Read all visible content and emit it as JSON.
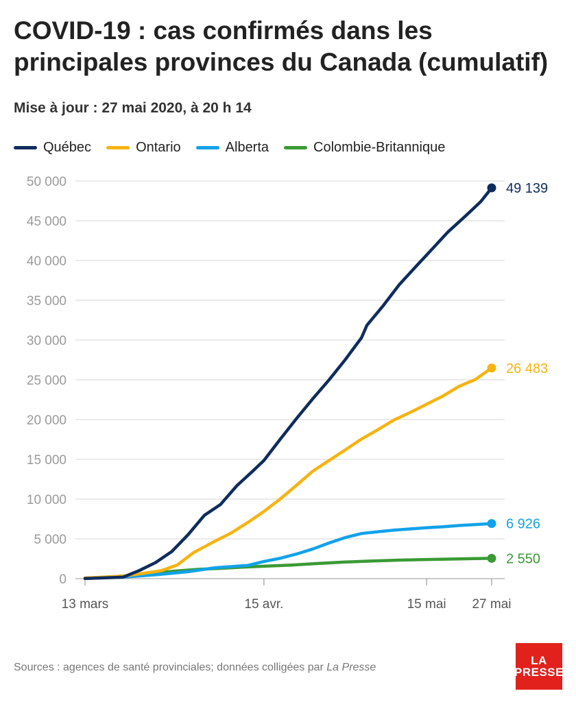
{
  "title": "COVID-19 : cas confirmés dans les principales provinces du Canada (cumulatif)",
  "subtitle": "Mise à jour : 27 mai 2020, à 20 h 14",
  "source": {
    "text": "Sources : agences de santé provinciales; données colligées par ",
    "italic": "La Presse"
  },
  "logo": {
    "line1": "LA",
    "line2": "PRESSE"
  },
  "colors": {
    "quebec": "#0f2c5c",
    "ontario": "#f6b312",
    "alberta": "#12a2ea",
    "cb": "#3a9a35",
    "grid": "#d6d6d6",
    "tick": "#9a9a9a"
  },
  "chart_data": {
    "type": "line",
    "x_unit": "date",
    "xlim": [
      "2020-03-13",
      "2020-05-27"
    ],
    "ylim": [
      0,
      50000
    ],
    "yticks": [
      0,
      5000,
      10000,
      15000,
      20000,
      25000,
      30000,
      35000,
      40000,
      45000,
      50000
    ],
    "ytick_labels": [
      "0",
      "5 000",
      "10 000",
      "15 000",
      "20 000",
      "25 000",
      "30 000",
      "35 000",
      "40 000",
      "45 000",
      "50 000"
    ],
    "xticks": [
      {
        "date": "2020-03-13",
        "label": "13 mars"
      },
      {
        "date": "2020-04-15",
        "label": "15 avr."
      },
      {
        "date": "2020-05-15",
        "label": "15 mai"
      },
      {
        "date": "2020-05-27",
        "label": "27 mai"
      }
    ],
    "grid": true,
    "legend_position": "top",
    "series": [
      {
        "name": "Québec",
        "key": "quebec",
        "end_label": "49 139",
        "points": [
          [
            "2020-03-13",
            17
          ],
          [
            "2020-03-20",
            181
          ],
          [
            "2020-03-23",
            1013
          ],
          [
            "2020-03-26",
            2021
          ],
          [
            "2020-03-29",
            3406
          ],
          [
            "2020-04-01",
            5518
          ],
          [
            "2020-04-04",
            7944
          ],
          [
            "2020-04-07",
            9340
          ],
          [
            "2020-04-10",
            11677
          ],
          [
            "2020-04-13",
            13557
          ],
          [
            "2020-04-15",
            14860
          ],
          [
            "2020-04-18",
            17521
          ],
          [
            "2020-04-21",
            20126
          ],
          [
            "2020-04-24",
            22616
          ],
          [
            "2020-04-27",
            24982
          ],
          [
            "2020-04-30",
            27538
          ],
          [
            "2020-05-03",
            30289
          ],
          [
            "2020-05-04",
            31865
          ],
          [
            "2020-05-07",
            34327
          ],
          [
            "2020-05-10",
            37000
          ],
          [
            "2020-05-13",
            39225
          ],
          [
            "2020-05-16",
            41420
          ],
          [
            "2020-05-19",
            43627
          ],
          [
            "2020-05-22",
            45495
          ],
          [
            "2020-05-25",
            47411
          ],
          [
            "2020-05-27",
            49139
          ]
        ]
      },
      {
        "name": "Ontario",
        "key": "ontario",
        "end_label": "26 483",
        "points": [
          [
            "2020-03-13",
            79
          ],
          [
            "2020-03-20",
            308
          ],
          [
            "2020-03-24",
            688
          ],
          [
            "2020-03-27",
            993
          ],
          [
            "2020-03-30",
            1706
          ],
          [
            "2020-04-02",
            3255
          ],
          [
            "2020-04-06",
            4726
          ],
          [
            "2020-04-09",
            5759
          ],
          [
            "2020-04-12",
            7049
          ],
          [
            "2020-04-15",
            8447
          ],
          [
            "2020-04-18",
            10010
          ],
          [
            "2020-04-21",
            11735
          ],
          [
            "2020-04-24",
            13519
          ],
          [
            "2020-04-27",
            14856
          ],
          [
            "2020-04-30",
            16187
          ],
          [
            "2020-05-03",
            17553
          ],
          [
            "2020-05-06",
            18722
          ],
          [
            "2020-05-09",
            19944
          ],
          [
            "2020-05-12",
            20907
          ],
          [
            "2020-05-15",
            21922
          ],
          [
            "2020-05-18",
            22957
          ],
          [
            "2020-05-21",
            24187
          ],
          [
            "2020-05-24",
            25040
          ],
          [
            "2020-05-27",
            26483
          ]
        ]
      },
      {
        "name": "Alberta",
        "key": "alberta",
        "end_label": "6 926",
        "points": [
          [
            "2020-03-13",
            23
          ],
          [
            "2020-03-20",
            195
          ],
          [
            "2020-03-26",
            486
          ],
          [
            "2020-04-01",
            871
          ],
          [
            "2020-04-06",
            1373
          ],
          [
            "2020-04-12",
            1651
          ],
          [
            "2020-04-15",
            2158
          ],
          [
            "2020-04-18",
            2562
          ],
          [
            "2020-04-21",
            3095
          ],
          [
            "2020-04-24",
            3720
          ],
          [
            "2020-04-27",
            4480
          ],
          [
            "2020-04-30",
            5165
          ],
          [
            "2020-05-03",
            5670
          ],
          [
            "2020-05-06",
            5893
          ],
          [
            "2020-05-09",
            6098
          ],
          [
            "2020-05-12",
            6253
          ],
          [
            "2020-05-15",
            6407
          ],
          [
            "2020-05-18",
            6515
          ],
          [
            "2020-05-21",
            6683
          ],
          [
            "2020-05-24",
            6800
          ],
          [
            "2020-05-27",
            6926
          ]
        ]
      },
      {
        "name": "Colombie-Britannique",
        "key": "cb",
        "end_label": "2 550",
        "points": [
          [
            "2020-03-13",
            64
          ],
          [
            "2020-03-18",
            231
          ],
          [
            "2020-03-22",
            424
          ],
          [
            "2020-03-26",
            725
          ],
          [
            "2020-03-30",
            970
          ],
          [
            "2020-04-03",
            1174
          ],
          [
            "2020-04-07",
            1291
          ],
          [
            "2020-04-11",
            1445
          ],
          [
            "2020-04-15",
            1561
          ],
          [
            "2020-04-20",
            1699
          ],
          [
            "2020-04-25",
            1904
          ],
          [
            "2020-04-30",
            2087
          ],
          [
            "2020-05-05",
            2224
          ],
          [
            "2020-05-10",
            2330
          ],
          [
            "2020-05-15",
            2407
          ],
          [
            "2020-05-20",
            2467
          ],
          [
            "2020-05-24",
            2517
          ],
          [
            "2020-05-27",
            2550
          ]
        ]
      }
    ]
  }
}
